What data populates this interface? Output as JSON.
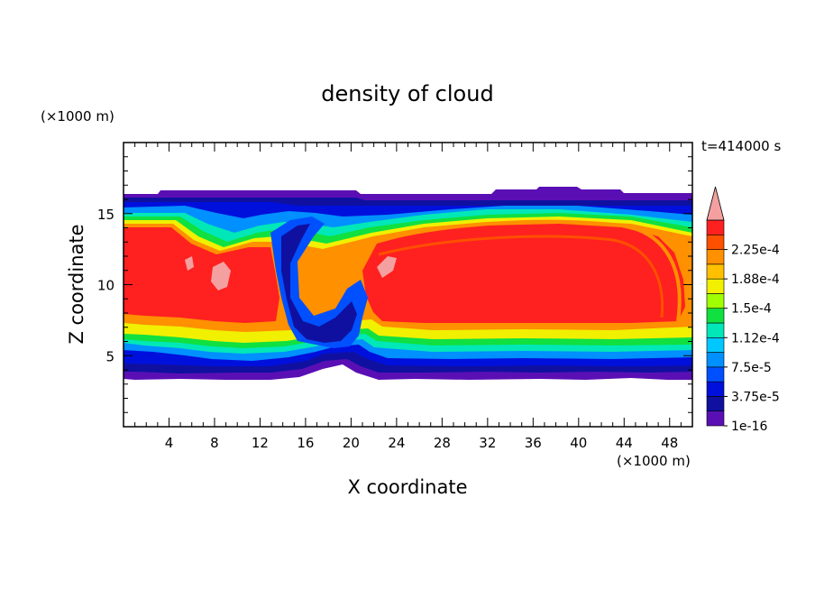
{
  "chart_data": {
    "type": "heatmap",
    "title": "density of cloud",
    "xlabel": "X coordinate",
    "ylabel": "Z coordinate",
    "x_unit": "(×1000 m)",
    "y_unit": "(×1000 m)",
    "time_label": "t=414000 s",
    "xlim": [
      0,
      50
    ],
    "ylim": [
      0,
      20
    ],
    "x_ticks": [
      4,
      8,
      12,
      16,
      20,
      24,
      28,
      32,
      36,
      40,
      44,
      48
    ],
    "y_ticks": [
      5,
      10,
      15
    ],
    "colorbar": {
      "labels": [
        "1e-16",
        "3.75e-5",
        "7.5e-5",
        "1.12e-4",
        "1.5e-4",
        "1.88e-4",
        "2.25e-4"
      ],
      "levels": [
        1e-16,
        1.875e-05,
        3.75e-05,
        5.625e-05,
        7.5e-05,
        9.375e-05,
        0.0001125,
        0.00013125,
        0.00015,
        0.00016875,
        0.0001875,
        0.00020625,
        0.000225,
        0.00024375
      ],
      "colors": [
        "#5a0fb4",
        "#1010a0",
        "#0010dc",
        "#0050ff",
        "#0090ff",
        "#00c8ff",
        "#00e8b8",
        "#10e040",
        "#a0ff00",
        "#f0f000",
        "#ffc000",
        "#ff9000",
        "#ff5000",
        "#ff2020"
      ],
      "extend_color": "#f4a0a0"
    },
    "cloud_fields": {
      "cloud_base_km": 3.6,
      "cloud_top_km": 16.2,
      "core_bottom_km": 6.0,
      "core_top_km": 14.2,
      "dry_channel_x_km": [
        14.5,
        20.5
      ]
    }
  }
}
